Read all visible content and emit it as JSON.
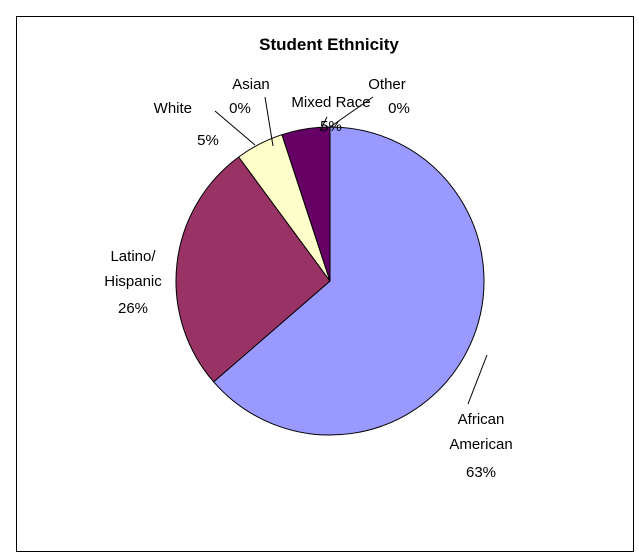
{
  "chart_data": {
    "type": "pie",
    "title": "Student Ethnicity",
    "slices": [
      {
        "name": "African American",
        "name_lines": [
          "African",
          "American"
        ],
        "value": 63,
        "label": "63%",
        "color": "#9999FF"
      },
      {
        "name": "Latino/ Hispanic",
        "name_lines": [
          "Latino/",
          "Hispanic"
        ],
        "value": 26,
        "label": "26%",
        "color": "#993366"
      },
      {
        "name": "White",
        "name_lines": [
          "White"
        ],
        "value": 5,
        "label": "5%",
        "color": "#FFFFCC"
      },
      {
        "name": "Asian",
        "name_lines": [
          "Asian"
        ],
        "value": 0,
        "label": "0%",
        "color": "#CCFFFF"
      },
      {
        "name": "Mixed Race",
        "name_lines": [
          "Mixed Race"
        ],
        "value": 5,
        "label": "5%",
        "color": "#660066"
      },
      {
        "name": "Other",
        "name_lines": [
          "Other"
        ],
        "value": 0,
        "label": "0%",
        "color": "#FF8080"
      }
    ],
    "legend": "none",
    "grid": false
  }
}
